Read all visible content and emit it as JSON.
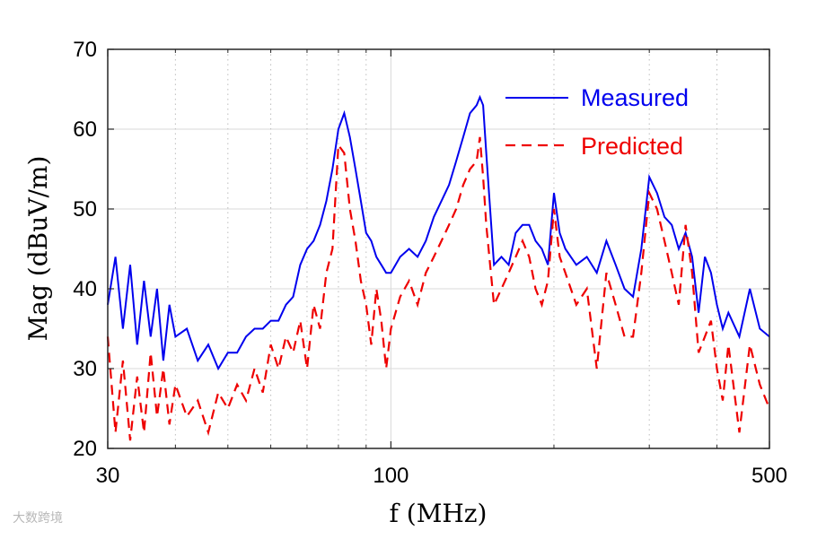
{
  "chart_data": {
    "type": "line",
    "title": "",
    "xlabel": "f (MHz)",
    "ylabel": "Mag (dBuV/m)",
    "xscale": "log",
    "xlim": [
      30,
      500
    ],
    "ylim": [
      20,
      70
    ],
    "xticks": [
      30,
      100,
      500
    ],
    "xtick_labels": [
      "30",
      "100",
      "500"
    ],
    "xminor": [
      40,
      50,
      60,
      70,
      80,
      90,
      200,
      300,
      400
    ],
    "yticks": [
      20,
      30,
      40,
      50,
      60,
      70
    ],
    "ytick_labels": [
      "20",
      "30",
      "40",
      "50",
      "60",
      "70"
    ],
    "grid": true,
    "legend_position": "top-right",
    "series": [
      {
        "name": "Measured",
        "color": "#0000ee",
        "style": "solid",
        "x": [
          30,
          31,
          32,
          33,
          34,
          35,
          36,
          37,
          38,
          39,
          40,
          42,
          44,
          46,
          48,
          50,
          52,
          54,
          56,
          58,
          60,
          62,
          64,
          66,
          68,
          70,
          72,
          74,
          76,
          78,
          80,
          82,
          84,
          86,
          88,
          90,
          92,
          94,
          96,
          98,
          100,
          104,
          108,
          112,
          116,
          120,
          124,
          128,
          132,
          136,
          140,
          144,
          146,
          148,
          150,
          155,
          160,
          165,
          170,
          175,
          180,
          185,
          190,
          195,
          200,
          205,
          210,
          220,
          230,
          240,
          250,
          260,
          270,
          280,
          290,
          300,
          310,
          320,
          330,
          340,
          350,
          360,
          370,
          380,
          390,
          400,
          410,
          420,
          440,
          460,
          480,
          500
        ],
        "y": [
          38,
          44,
          35,
          43,
          33,
          41,
          34,
          40,
          31,
          38,
          34,
          35,
          31,
          33,
          30,
          32,
          32,
          34,
          35,
          35,
          36,
          36,
          38,
          39,
          43,
          45,
          46,
          48,
          51,
          55,
          60,
          62,
          59,
          55,
          51,
          47,
          46,
          44,
          43,
          42,
          42,
          44,
          45,
          44,
          46,
          49,
          51,
          53,
          56,
          59,
          62,
          63,
          64,
          63,
          57,
          43,
          44,
          43,
          47,
          48,
          48,
          46,
          45,
          43,
          52,
          47,
          45,
          43,
          44,
          42,
          46,
          43,
          40,
          39,
          45,
          54,
          52,
          49,
          48,
          45,
          47,
          44,
          37,
          44,
          42,
          38,
          35,
          37,
          34,
          40,
          35,
          34
        ]
      },
      {
        "name": "Predicted",
        "color": "#ee0000",
        "style": "dashed",
        "x": [
          30,
          31,
          32,
          33,
          34,
          35,
          36,
          37,
          38,
          39,
          40,
          42,
          44,
          46,
          48,
          50,
          52,
          54,
          56,
          58,
          60,
          62,
          64,
          66,
          68,
          70,
          72,
          74,
          76,
          78,
          80,
          82,
          84,
          86,
          88,
          90,
          92,
          94,
          96,
          98,
          100,
          104,
          108,
          112,
          116,
          120,
          124,
          128,
          132,
          136,
          140,
          144,
          146,
          148,
          150,
          155,
          160,
          165,
          170,
          175,
          180,
          185,
          190,
          195,
          200,
          205,
          210,
          220,
          230,
          240,
          250,
          260,
          270,
          280,
          290,
          300,
          310,
          320,
          330,
          340,
          350,
          360,
          370,
          380,
          390,
          400,
          410,
          420,
          440,
          460,
          480,
          500
        ],
        "y": [
          34,
          22,
          31,
          21,
          29,
          22,
          32,
          24,
          30,
          23,
          28,
          24,
          26,
          22,
          27,
          25,
          28,
          26,
          30,
          27,
          33,
          30,
          34,
          32,
          36,
          30,
          38,
          35,
          42,
          45,
          58,
          57,
          50,
          46,
          41,
          38,
          33,
          40,
          36,
          30,
          35,
          39,
          41,
          38,
          42,
          44,
          46,
          48,
          50,
          53,
          55,
          56,
          59,
          54,
          48,
          38,
          40,
          42,
          44,
          46,
          44,
          40,
          38,
          41,
          50,
          44,
          42,
          38,
          40,
          30,
          42,
          38,
          34,
          34,
          42,
          52,
          50,
          46,
          42,
          38,
          48,
          42,
          32,
          34,
          36,
          30,
          26,
          33,
          22,
          33,
          28,
          25
        ]
      }
    ]
  },
  "watermark": "大数跨境"
}
